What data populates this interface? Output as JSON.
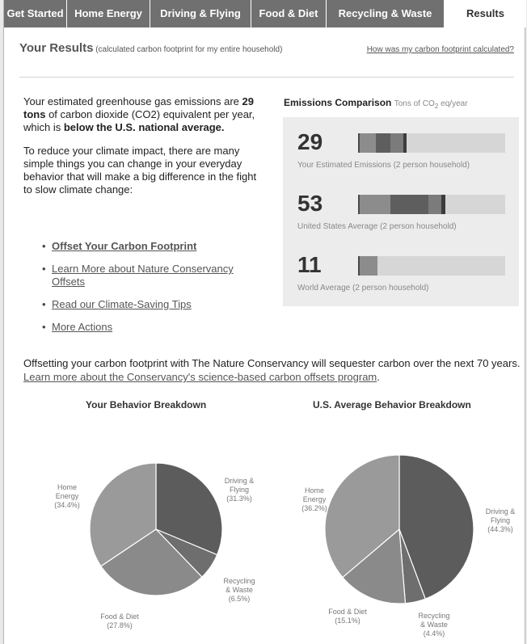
{
  "tabs": [
    "Get Started",
    "Home Energy",
    "Driving & Flying",
    "Food & Diet",
    "Recycling & Waste",
    "Results"
  ],
  "header": {
    "title": "Your Results",
    "subtitle": "(calculated carbon footprint for my entire household)",
    "how_link": "How was my carbon footprint calculated?"
  },
  "intro": {
    "p1_a": "Your estimated greenhouse gas emissions are ",
    "p1_tons": "29 tons",
    "p1_b": " of carbon dioxide (CO2) equivalent per year, which is ",
    "p1_below": "below the U.S. national average.",
    "p2": "To reduce your climate impact, there are many simple things you can change in your everyday behavior that will make a big difference in the fight to slow climate change:"
  },
  "actions": [
    "Offset Your Carbon Footprint",
    "Learn More about Nature Conservancy Offsets",
    "Read our Climate-Saving Tips",
    "More Actions"
  ],
  "comparison": {
    "title": "Emissions Comparison",
    "units_pre": "Tons of CO",
    "units_sub": "2",
    "units_post": " eq/year",
    "max": 90,
    "rows": [
      {
        "value": "29",
        "label": "Your Estimated Emissions (2 person household)",
        "segments": [
          10.0,
          9.1,
          8.1,
          1.9
        ]
      },
      {
        "value": "53",
        "label": "United States Average (2 person household)",
        "segments": [
          19.2,
          23.5,
          8.0,
          2.3
        ]
      },
      {
        "value": "11",
        "label": "World Average (2 person household)",
        "segments": [
          11
        ]
      }
    ],
    "segment_colors": [
      "#8c8c8c",
      "#5e5e5e",
      "#7b7b7b",
      "#3c3c3c"
    ]
  },
  "offset": {
    "text": "Offsetting your carbon footprint with The Nature Conservancy will sequester carbon over the next 70 years. ",
    "link": "Learn more about the Conservancy's science-based carbon offsets program"
  },
  "chart_data": [
    {
      "type": "pie",
      "title": "Your Behavior Breakdown",
      "categories": [
        "Driving & Flying",
        "Recycling & Waste",
        "Food & Diet",
        "Home Energy"
      ],
      "values": [
        31.3,
        6.5,
        27.8,
        34.4
      ],
      "colors": [
        "#5c5c5c",
        "#6e6e6e",
        "#8a8a8a",
        "#9a9a9a"
      ]
    },
    {
      "type": "pie",
      "title": "U.S. Average Behavior Breakdown",
      "categories": [
        "Driving & Flying",
        "Recycling & Waste",
        "Food & Diet",
        "Home Energy"
      ],
      "values": [
        44.3,
        4.4,
        15.1,
        36.2
      ],
      "colors": [
        "#5c5c5c",
        "#6e6e6e",
        "#8a8a8a",
        "#9a9a9a"
      ]
    }
  ],
  "pie_labels": {
    "you": [
      {
        "name": "Driving &\nFlying",
        "pct": "(31.3%)"
      },
      {
        "name": "Recycling\n& Waste",
        "pct": "(6.5%)"
      },
      {
        "name": "Food & Diet",
        "pct": "(27.8%)"
      },
      {
        "name": "Home\nEnergy",
        "pct": "(34.4%)"
      }
    ],
    "us": [
      {
        "name": "Driving &\nFlying",
        "pct": "(44.3%)"
      },
      {
        "name": "Recycling\n& Waste",
        "pct": "(4.4%)"
      },
      {
        "name": "Food & Diet",
        "pct": "(15.1%)"
      },
      {
        "name": "Home\nEnergy",
        "pct": "(36.2%)"
      }
    ]
  }
}
